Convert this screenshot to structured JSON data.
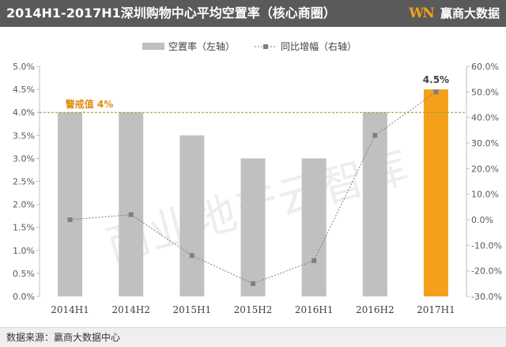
{
  "header": {
    "title": "2014H1-2017H1深圳购物中心平均空置率（核心商圈）",
    "logo_mark": "WN",
    "logo_text": "赢商大数据"
  },
  "footer": {
    "source": "数据来源：赢商大数据中心"
  },
  "colors": {
    "bar": "#c0c0c0",
    "highlight_bar": "#f5a01a",
    "line": "#7f7f7f",
    "threshold": "#8a9a3a",
    "threshold_label": "#e08a10"
  },
  "chart_data": {
    "type": "bar",
    "categories": [
      "2014H1",
      "2014H2",
      "2015H1",
      "2015H2",
      "2016H1",
      "2016H2",
      "2017H1"
    ],
    "series": [
      {
        "name": "空置率（左轴）",
        "type": "bar",
        "axis": "left",
        "values": [
          4.0,
          4.0,
          3.5,
          3.0,
          3.0,
          4.0,
          4.5
        ]
      },
      {
        "name": "同比增幅（右轴）",
        "type": "line",
        "axis": "right",
        "values": [
          0.0,
          2.0,
          -14.0,
          -25.0,
          -16.0,
          33.0,
          50.0
        ]
      }
    ],
    "left_ticks": [
      "0.0%",
      "0.5%",
      "1.0%",
      "1.5%",
      "2.0%",
      "2.5%",
      "3.0%",
      "3.5%",
      "4.0%",
      "4.5%",
      "5.0%"
    ],
    "right_ticks": [
      "-30.0%",
      "-20.0%",
      "-10.0%",
      "0.0%",
      "10.0%",
      "20.0%",
      "30.0%",
      "40.0%",
      "50.0%",
      "60.0%"
    ],
    "ylim_left": [
      0,
      5
    ],
    "ylim_right": [
      -30,
      60
    ],
    "threshold": {
      "value": 4.0,
      "label": "警戒值 4%"
    },
    "data_labels": [
      {
        "category": "2017H1",
        "text": "4.5%"
      }
    ],
    "highlight_category": "2017H1",
    "legend_position": "top-center",
    "grid": false,
    "watermark": "商业地产云智库"
  }
}
